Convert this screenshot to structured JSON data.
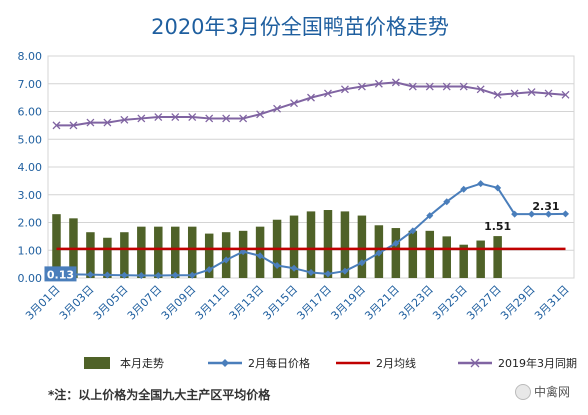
{
  "chart_data": {
    "type": "bar+line",
    "title": "2020年3月份全国鸭苗价格走势",
    "ylim": [
      0,
      8
    ],
    "yticks": [
      "0.00",
      "1.00",
      "2.00",
      "3.00",
      "4.00",
      "5.00",
      "6.00",
      "7.00",
      "8.00"
    ],
    "categories": [
      "3月01日",
      "3月02日",
      "3月03日",
      "3月04日",
      "3月05日",
      "3月06日",
      "3月07日",
      "3月08日",
      "3月09日",
      "3月10日",
      "3月11日",
      "3月12日",
      "3月13日",
      "3月14日",
      "3月15日",
      "3月16日",
      "3月17日",
      "3月18日",
      "3月19日",
      "3月20日",
      "3月21日",
      "3月22日",
      "3月23日",
      "3月24日",
      "3月25日",
      "3月26日",
      "3月27日",
      "3月28日",
      "3月29日",
      "3月30日",
      "3月31日"
    ],
    "xtick_labels": [
      "3月01日",
      "3月03日",
      "3月05日",
      "3月07日",
      "3月09日",
      "3月11日",
      "3月13日",
      "3月15日",
      "3月17日",
      "3月19日",
      "3月21日",
      "3月23日",
      "3月25日",
      "3月27日",
      "3月29日",
      "3月31日"
    ],
    "series": [
      {
        "name": "本月走势",
        "type": "bar",
        "color": "#4f6228",
        "values": [
          2.3,
          2.15,
          1.65,
          1.45,
          1.65,
          1.85,
          1.85,
          1.85,
          1.85,
          1.6,
          1.65,
          1.7,
          1.85,
          2.1,
          2.25,
          2.4,
          2.45,
          2.4,
          2.25,
          1.9,
          1.8,
          1.7,
          1.7,
          1.5,
          1.2,
          1.35,
          1.51,
          null,
          null,
          null,
          null
        ]
      },
      {
        "name": "2月每日价格",
        "type": "line",
        "color": "#4a7ebb",
        "marker": "diamond",
        "values": [
          0.13,
          0.13,
          0.12,
          0.11,
          0.1,
          0.09,
          0.09,
          0.1,
          0.1,
          0.3,
          0.65,
          0.95,
          0.8,
          0.45,
          0.35,
          0.2,
          0.15,
          0.25,
          0.55,
          0.9,
          1.25,
          1.7,
          2.25,
          2.75,
          3.2,
          3.4,
          3.25,
          2.3,
          2.3,
          2.3,
          2.31
        ]
      },
      {
        "name": "2月均线",
        "type": "line",
        "color": "#c00000",
        "values": [
          1.05,
          1.05,
          1.05,
          1.05,
          1.05,
          1.05,
          1.05,
          1.05,
          1.05,
          1.05,
          1.05,
          1.05,
          1.05,
          1.05,
          1.05,
          1.05,
          1.05,
          1.05,
          1.05,
          1.05,
          1.05,
          1.05,
          1.05,
          1.05,
          1.05,
          1.05,
          1.05,
          1.05,
          1.05,
          1.05,
          1.05
        ]
      },
      {
        "name": "2019年3月同期",
        "type": "line",
        "color": "#8064a2",
        "marker": "x",
        "values": [
          5.5,
          5.5,
          5.6,
          5.6,
          5.7,
          5.75,
          5.8,
          5.8,
          5.8,
          5.75,
          5.75,
          5.75,
          5.9,
          6.1,
          6.3,
          6.5,
          6.65,
          6.8,
          6.9,
          7.0,
          7.05,
          6.9,
          6.9,
          6.9,
          6.9,
          6.8,
          6.6,
          6.65,
          6.7,
          6.65,
          6.6
        ]
      }
    ],
    "annotations": [
      {
        "text": "0.13",
        "category": "3月01日",
        "series": "2月每日价格"
      },
      {
        "text": "1.51",
        "category": "3月27日",
        "series": "本月走势"
      },
      {
        "text": "2.31",
        "category": "3月31日",
        "series": "2月每日价格"
      }
    ],
    "legend_position": "bottom",
    "grid": true
  },
  "footer": {
    "note": "*注：以上价格为全国九大主产区平均价格",
    "brand": "中禽网"
  }
}
